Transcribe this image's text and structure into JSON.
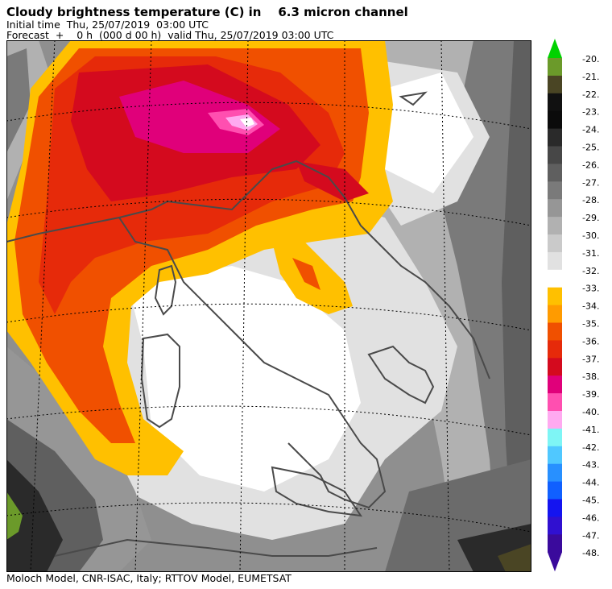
{
  "header": {
    "title": "Cloudy brightness temperature (C) in    6.3 micron channel",
    "initial": "Initial time  Thu, 25/07/2019  03:00 UTC",
    "forecast": "Forecast  +    0 h  (000 d 00 h)  valid Thu, 25/07/2019 03:00 UTC"
  },
  "footer": {
    "credit": "Moloch Model, CNR-ISAC, Italy; RTTOV Model, EUMETSAT"
  },
  "legend": {
    "labels": [
      "-20.",
      "-21.",
      "-22.",
      "-23.",
      "-24.",
      "-25.",
      "-26.",
      "-27.",
      "-28.",
      "-29.",
      "-30.",
      "-31.",
      "-32.",
      "-33.",
      "-34.",
      "-35.",
      "-36.",
      "-37.",
      "-38.",
      "-39.",
      "-40.",
      "-41.",
      "-42.",
      "-43.",
      "-44.",
      "-45.",
      "-46.",
      "-47.",
      "-48."
    ],
    "colors": [
      "#6b9a2a",
      "#4a4524",
      "#111111",
      "#0b0b0b",
      "#2a2a2a",
      "#474747",
      "#5f5f5f",
      "#7a7a7a",
      "#969696",
      "#b1b1b1",
      "#cacaca",
      "#e1e1e1",
      "#ffffff",
      "#ffc000",
      "#ff9b00",
      "#f05000",
      "#e62a0a",
      "#d40a1e",
      "#e0007a",
      "#ff4fb0",
      "#ffaaf0",
      "#7ef5f5",
      "#50c8ff",
      "#2890ff",
      "#1060ff",
      "#1414f0",
      "#3010d0",
      "#3a0a9c"
    ],
    "top_arrow_color": "#00d200",
    "bottom_arrow_color": "#3a0a9c"
  }
}
